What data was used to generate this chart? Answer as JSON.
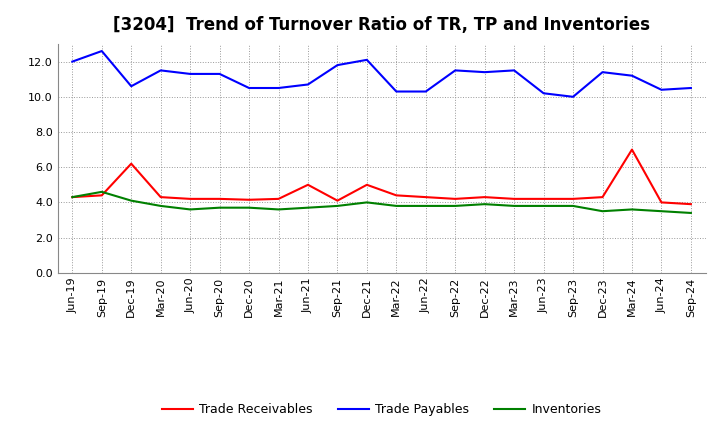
{
  "title": "[3204]  Trend of Turnover Ratio of TR, TP and Inventories",
  "ylim": [
    0.0,
    13.0
  ],
  "yticks": [
    0.0,
    2.0,
    4.0,
    6.0,
    8.0,
    10.0,
    12.0
  ],
  "categories": [
    "Jun-19",
    "Sep-19",
    "Dec-19",
    "Mar-20",
    "Jun-20",
    "Sep-20",
    "Dec-20",
    "Mar-21",
    "Jun-21",
    "Sep-21",
    "Dec-21",
    "Mar-22",
    "Jun-22",
    "Sep-22",
    "Dec-22",
    "Mar-23",
    "Jun-23",
    "Sep-23",
    "Dec-23",
    "Mar-24",
    "Jun-24",
    "Sep-24"
  ],
  "trade_receivables": [
    4.3,
    4.4,
    6.2,
    4.3,
    4.2,
    4.2,
    4.15,
    4.2,
    5.0,
    4.1,
    5.0,
    4.4,
    4.3,
    4.2,
    4.3,
    4.2,
    4.2,
    4.2,
    4.3,
    7.0,
    4.0,
    3.9
  ],
  "trade_payables": [
    12.0,
    12.6,
    10.6,
    11.5,
    11.3,
    11.3,
    10.5,
    10.5,
    10.7,
    11.8,
    12.1,
    10.3,
    10.3,
    11.5,
    11.4,
    11.5,
    10.2,
    10.0,
    11.4,
    11.2,
    10.4,
    10.5
  ],
  "inventories": [
    4.3,
    4.6,
    4.1,
    3.8,
    3.6,
    3.7,
    3.7,
    3.6,
    3.7,
    3.8,
    4.0,
    3.8,
    3.8,
    3.8,
    3.9,
    3.8,
    3.8,
    3.8,
    3.5,
    3.6,
    3.5,
    3.4
  ],
  "color_tr": "#FF0000",
  "color_tp": "#0000FF",
  "color_inv": "#008000",
  "legend_labels": [
    "Trade Receivables",
    "Trade Payables",
    "Inventories"
  ],
  "background_color": "#FFFFFF",
  "grid_color": "#999999",
  "title_fontsize": 12,
  "legend_fontsize": 9,
  "tick_fontsize": 8
}
